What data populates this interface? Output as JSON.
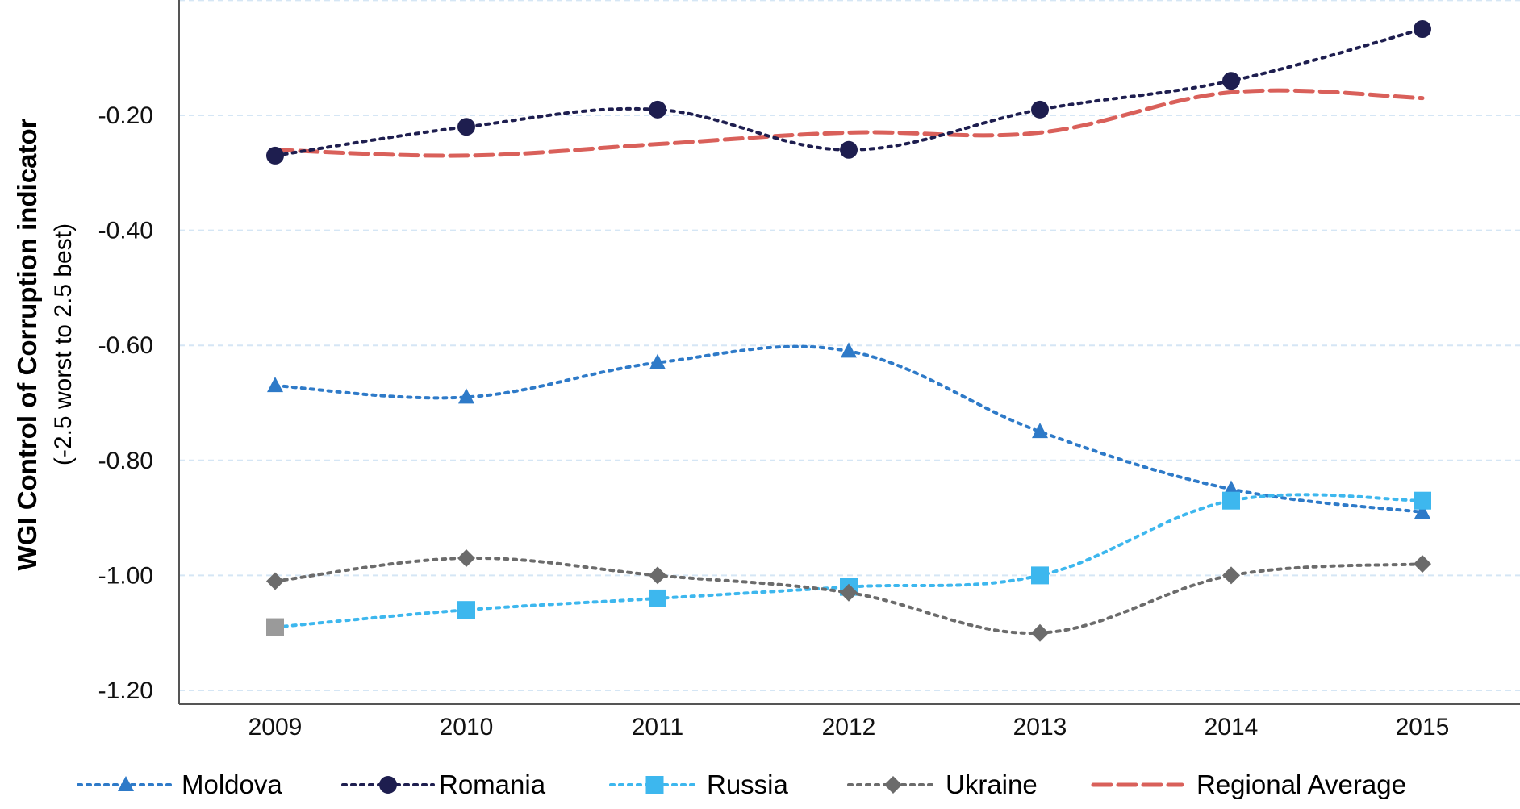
{
  "chart_data": {
    "type": "line",
    "title": "",
    "ylabel": "WGI Control of Corruption indicator",
    "ylabel_sub": "(-2.5 worst to 2.5 best)",
    "xlabel": "",
    "categories": [
      "2009",
      "2010",
      "2011",
      "2012",
      "2013",
      "2014",
      "2015"
    ],
    "ylim": [
      -1.2,
      0.0
    ],
    "yticks": [
      -0.2,
      -0.4,
      -0.6,
      -0.8,
      -1.0,
      -1.2
    ],
    "ytick_labels": [
      "-0.20",
      "-0.40",
      "-0.60",
      "-0.80",
      "-1.00",
      "-1.20"
    ],
    "grid": true,
    "legend_position": "bottom",
    "series": [
      {
        "name": "Moldova",
        "values": [
          -0.67,
          -0.69,
          -0.63,
          -0.61,
          -0.75,
          -0.85,
          -0.89
        ],
        "color": "#2E7AC8",
        "marker": "triangle",
        "dash": "dotted"
      },
      {
        "name": "Romania",
        "values": [
          -0.27,
          -0.22,
          -0.19,
          -0.26,
          -0.19,
          -0.14,
          -0.05
        ],
        "color": "#1E1E4F",
        "marker": "circle",
        "dash": "dotted"
      },
      {
        "name": "Russia",
        "values": [
          -1.09,
          -1.06,
          -1.04,
          -1.02,
          -1.0,
          -0.87,
          -0.87
        ],
        "color": "#3DB7EE",
        "marker": "square",
        "dash": "dotted",
        "first_marker_color": "#9A9A9A"
      },
      {
        "name": "Ukraine",
        "values": [
          -1.01,
          -0.97,
          -1.0,
          -1.03,
          -1.1,
          -1.0,
          -0.98
        ],
        "color": "#6B6B6B",
        "marker": "diamond",
        "dash": "dotted"
      },
      {
        "name": "Regional Average",
        "values": [
          -0.26,
          -0.27,
          -0.25,
          -0.23,
          -0.23,
          -0.16,
          -0.17
        ],
        "color": "#D9605A",
        "marker": "none",
        "dash": "dashed"
      }
    ]
  }
}
